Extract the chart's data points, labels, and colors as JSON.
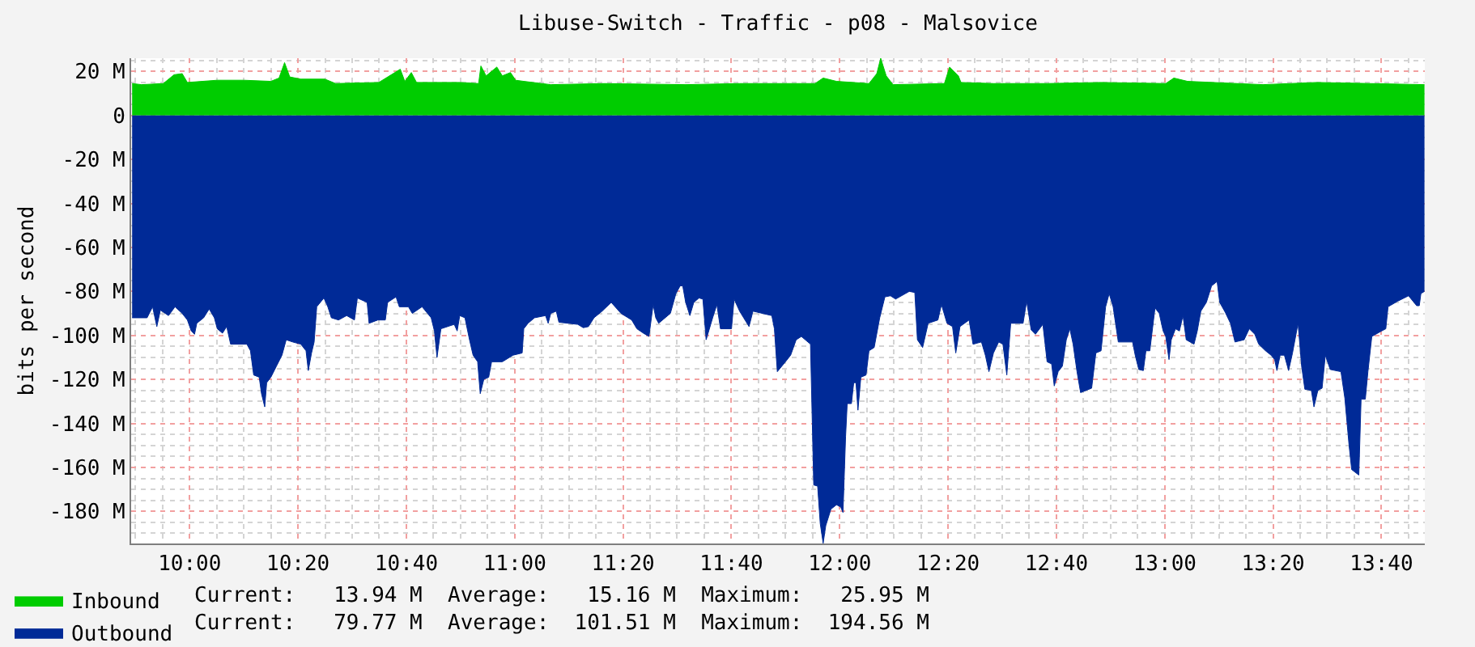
{
  "chart_data": {
    "type": "area",
    "title": "Libuse-Switch - Traffic - p08 - Malsovice",
    "ylabel": "bits per second",
    "xlim": [
      9.82,
      13.8
    ],
    "xticks": [
      {
        "value": 10,
        "label": "10:00"
      },
      {
        "value": 10.3333,
        "label": "10:20"
      },
      {
        "value": 10.6667,
        "label": "10:40"
      },
      {
        "value": 11,
        "label": "11:00"
      },
      {
        "value": 11.3333,
        "label": "11:20"
      },
      {
        "value": 11.6667,
        "label": "11:40"
      },
      {
        "value": 12,
        "label": "12:00"
      },
      {
        "value": 12.3333,
        "label": "12:20"
      },
      {
        "value": 12.6667,
        "label": "12:40"
      },
      {
        "value": 13,
        "label": "13:00"
      },
      {
        "value": 13.3333,
        "label": "13:20"
      },
      {
        "value": 13.6667,
        "label": "13:40"
      }
    ],
    "ylim": [
      -194.6,
      26
    ],
    "yticks": [
      {
        "value": 20,
        "label": "20 M"
      },
      0,
      {
        "value": -20,
        "label": "-20 M"
      },
      {
        "value": -40,
        "label": "-40 M"
      },
      {
        "value": -60,
        "label": "-60 M"
      },
      {
        "value": -80,
        "label": "-80 M"
      },
      {
        "value": -100,
        "label": "-100 M"
      },
      {
        "value": -120,
        "label": "-120 M"
      },
      {
        "value": -140,
        "label": "-140 M"
      },
      {
        "value": -160,
        "label": "-160 M"
      },
      {
        "value": -180,
        "label": "-180 M"
      }
    ],
    "grid": true,
    "legend": "bottom",
    "series": [
      {
        "name": "Inbound",
        "color": "#00cc00",
        "x": [
          9.823,
          9.852,
          9.919,
          9.952,
          9.977,
          9.993,
          10.085,
          10.167,
          10.25,
          10.275,
          10.292,
          10.308,
          10.342,
          10.416,
          10.449,
          10.582,
          10.648,
          10.662,
          10.682,
          10.698,
          10.831,
          10.889,
          10.896,
          10.912,
          10.945,
          10.962,
          10.987,
          11.003,
          11.028,
          11.111,
          11.277,
          11.526,
          11.692,
          11.924,
          11.949,
          11.99,
          12.09,
          12.114,
          12.126,
          12.143,
          12.164,
          12.322,
          12.338,
          12.365,
          12.373,
          12.473,
          12.638,
          12.804,
          13.003,
          13.028,
          13.07,
          13.302,
          13.468,
          13.634,
          13.799
        ],
        "values": [
          14.5,
          14,
          14.5,
          18.5,
          19,
          15,
          16,
          16,
          15.5,
          17,
          24,
          17.5,
          16.5,
          16.5,
          14.5,
          15,
          21,
          15.5,
          19.5,
          15,
          15,
          14.5,
          22.5,
          18,
          22,
          18,
          19.5,
          16,
          15.5,
          14,
          14.5,
          14,
          14.5,
          14.5,
          17,
          15.5,
          14.5,
          19,
          26,
          18,
          14,
          14.5,
          22,
          18,
          15,
          14.5,
          14.5,
          15,
          14.5,
          17,
          15.5,
          14,
          15,
          14.5,
          14
        ]
      },
      {
        "name": "Outbound",
        "color": "#002a97",
        "x": [
          9.823,
          9.869,
          9.886,
          9.899,
          9.91,
          9.935,
          9.955,
          9.977,
          9.993,
          10.005,
          10.015,
          10.022,
          10.043,
          10.06,
          10.076,
          10.085,
          10.101,
          10.114,
          10.126,
          10.176,
          10.187,
          10.197,
          10.214,
          10.221,
          10.231,
          10.237,
          10.25,
          10.267,
          10.284,
          10.297,
          10.317,
          10.342,
          10.358,
          10.365,
          10.375,
          10.383,
          10.391,
          10.413,
          10.425,
          10.436,
          10.458,
          10.483,
          10.507,
          10.516,
          10.546,
          10.552,
          10.579,
          10.602,
          10.609,
          10.635,
          10.645,
          10.673,
          10.685,
          10.715,
          10.743,
          10.753,
          10.761,
          10.773,
          10.814,
          10.823,
          10.831,
          10.847,
          10.861,
          10.872,
          10.886,
          10.894,
          10.905,
          10.92,
          10.929,
          10.962,
          10.995,
          11.023,
          11.028,
          11.041,
          11.061,
          11.095,
          11.103,
          11.111,
          11.128,
          11.136,
          11.194,
          11.211,
          11.227,
          11.244,
          11.269,
          11.297,
          11.327,
          11.36,
          11.376,
          11.396,
          11.413,
          11.426,
          11.434,
          11.443,
          11.479,
          11.496,
          11.509,
          11.517,
          11.526,
          11.539,
          11.551,
          11.567,
          11.579,
          11.589,
          11.609,
          11.622,
          11.633,
          11.667,
          11.675,
          11.692,
          11.721,
          11.733,
          11.791,
          11.799,
          11.808,
          11.833,
          11.849,
          11.866,
          11.882,
          11.91,
          11.92,
          11.932,
          11.94,
          11.949,
          11.957,
          11.973,
          11.99,
          12.003,
          12.01,
          12.018,
          12.023,
          12.036,
          12.043,
          12.05,
          12.056,
          12.065,
          12.081,
          12.09,
          12.106,
          12.123,
          12.139,
          12.156,
          12.172,
          12.202,
          12.214,
          12.231,
          12.239,
          12.255,
          12.272,
          12.302,
          12.313,
          12.33,
          12.347,
          12.357,
          12.37,
          12.398,
          12.41,
          12.436,
          12.448,
          12.459,
          12.473,
          12.489,
          12.502,
          12.514,
          12.526,
          12.564,
          12.575,
          12.589,
          12.602,
          12.625,
          12.638,
          12.652,
          12.66,
          12.672,
          12.685,
          12.697,
          12.708,
          12.718,
          12.73,
          12.741,
          12.775,
          12.788,
          12.804,
          12.818,
          12.829,
          12.841,
          12.857,
          12.901,
          12.909,
          12.92,
          12.934,
          12.942,
          12.954,
          12.97,
          12.983,
          12.995,
          13.003,
          13.013,
          13.02,
          13.033,
          13.045,
          13.056,
          13.066,
          13.09,
          13.1,
          13.111,
          13.128,
          13.144,
          13.161,
          13.169,
          13.186,
          13.202,
          13.216,
          13.244,
          13.26,
          13.277,
          13.289,
          13.31,
          13.327,
          13.338,
          13.345,
          13.355,
          13.368,
          13.381,
          13.393,
          13.41,
          13.421,
          13.431,
          13.451,
          13.459,
          13.471,
          13.484,
          13.494,
          13.509,
          13.542,
          13.554,
          13.567,
          13.575,
          13.597,
          13.604,
          13.617,
          13.625,
          13.637,
          13.667,
          13.68,
          13.687,
          13.716,
          13.75,
          13.775,
          13.783,
          13.788,
          13.799
        ],
        "values": [
          -92,
          -92,
          -87,
          -96,
          -88.5,
          -91,
          -87,
          -90,
          -93,
          -98,
          -99.5,
          -94.5,
          -92,
          -88,
          -92,
          -97,
          -99,
          -96,
          -104,
          -104,
          -107,
          -118,
          -119,
          -126.5,
          -132.5,
          -121.5,
          -119,
          -114,
          -109,
          -102,
          -103,
          -104,
          -107,
          -116,
          -108,
          -103,
          -87,
          -83,
          -87,
          -92,
          -93,
          -91,
          -93,
          -83,
          -85,
          -94.5,
          -93,
          -93,
          -85,
          -82.5,
          -87,
          -87,
          -90,
          -87,
          -92,
          -98,
          -110,
          -97,
          -95,
          -98,
          -91,
          -92,
          -102,
          -109,
          -112,
          -126.5,
          -120,
          -119,
          -112,
          -112,
          -109,
          -108,
          -97,
          -94.5,
          -92,
          -91,
          -94.5,
          -90,
          -89,
          -94,
          -95,
          -96.5,
          -96,
          -92,
          -89,
          -85,
          -90,
          -93,
          -97,
          -99,
          -100.5,
          -86,
          -92,
          -94.5,
          -90,
          -81,
          -77.5,
          -77.5,
          -85,
          -91,
          -85,
          -83,
          -83.5,
          -102,
          -92,
          -86,
          -97,
          -97,
          -83.5,
          -89,
          -96,
          -89,
          -91,
          -97,
          -116.5,
          -112,
          -109,
          -102,
          -100.5,
          -104,
          -168,
          -168.5,
          -185.5,
          -194.5,
          -186.5,
          -179,
          -177,
          -178,
          -180.5,
          -146,
          -131,
          -131,
          -121.5,
          -121.5,
          -134,
          -119,
          -118,
          -107,
          -105.5,
          -92,
          -82.5,
          -82,
          -83.5,
          -81,
          -80,
          -80.5,
          -102,
          -105.5,
          -94.5,
          -93,
          -86,
          -94.5,
          -96,
          -108,
          -96,
          -93,
          -104,
          -103,
          -109,
          -116.5,
          -108,
          -103,
          -104,
          -118,
          -94.5,
          -94.5,
          -84.5,
          -97.5,
          -99.5,
          -95,
          -112,
          -113,
          -123,
          -116.5,
          -114,
          -102,
          -97,
          -104,
          -116.5,
          -126,
          -124,
          -108,
          -107,
          -87,
          -81,
          -87,
          -103,
          -103,
          -109,
          -115.5,
          -116,
          -107,
          -107,
          -87.5,
          -90,
          -98,
          -100.5,
          -111,
          -102,
          -97,
          -98,
          -91,
          -102,
          -104,
          -98,
          -89,
          -85,
          -77.5,
          -75.5,
          -85,
          -89.5,
          -94.5,
          -103,
          -102,
          -97,
          -99.5,
          -104,
          -107,
          -109,
          -111,
          -116,
          -109,
          -109,
          -116,
          -108,
          -94.5,
          -114,
          -124.5,
          -125,
          -132.5,
          -125,
          -124,
          -109,
          -115.5,
          -116.5,
          -128.5,
          -150,
          -161,
          -163.5,
          -129,
          -129,
          -116.5,
          -100.5,
          -98,
          -97,
          -87,
          -84.5,
          -82,
          -86.5,
          -86.5,
          -81,
          -80
        ]
      }
    ],
    "annotations": [
      "Current:   13.94 M  Average:   15.16 M  Maximum:   25.95 M",
      "Current:   79.77 M  Average:  101.51 M  Maximum:  194.56 M"
    ]
  }
}
